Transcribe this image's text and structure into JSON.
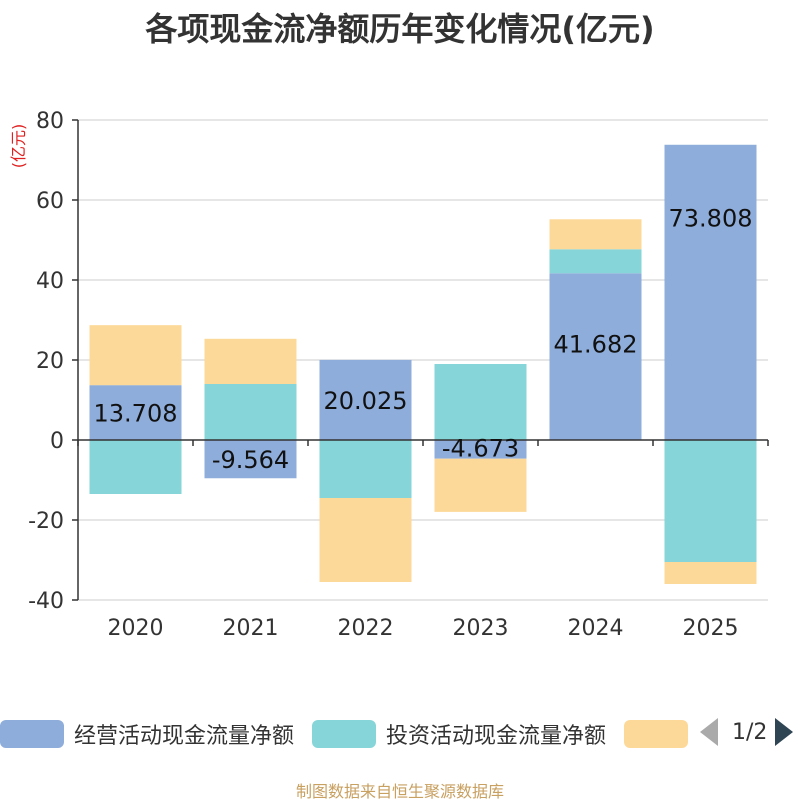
{
  "title": "各项现金流净额历年变化情况(亿元)",
  "source": "制图数据来自恒生聚源数据库",
  "pager": {
    "text": "1/2"
  },
  "colors": {
    "operating": "#8eadda",
    "investing": "#86d5d8",
    "financing": "#fdd999"
  },
  "legend": [
    {
      "name": "经营活动现金流量净额",
      "color": "#8eadda"
    },
    {
      "name": "投资活动现金流量净额",
      "color": "#86d5d8"
    },
    {
      "name": "",
      "color": "#fdd999"
    }
  ],
  "chart_data": {
    "type": "bar",
    "stacked": true,
    "title": "各项现金流净额历年变化情况(亿元)",
    "ylabel": "(亿元)",
    "ylim": [
      -40,
      80
    ],
    "yticks": [
      -40,
      -20,
      0,
      20,
      40,
      60,
      80
    ],
    "categories": [
      "2020",
      "2021",
      "2022",
      "2023",
      "2024",
      "2025"
    ],
    "series": [
      {
        "name": "经营活动现金流量净额",
        "values": [
          13.708,
          -9.564,
          20.025,
          -4.673,
          41.682,
          73.808
        ],
        "labels": [
          "13.708",
          "-9.564",
          "20.025",
          "-4.673",
          "41.682",
          "73.808"
        ]
      },
      {
        "name": "投资活动现金流量净额",
        "values": [
          -13.5,
          14.0,
          -14.5,
          19.0,
          6.0,
          -30.5
        ]
      },
      {
        "name": "",
        "values": [
          15.0,
          11.3,
          -21.0,
          -13.3,
          7.5,
          -5.5
        ]
      }
    ]
  }
}
